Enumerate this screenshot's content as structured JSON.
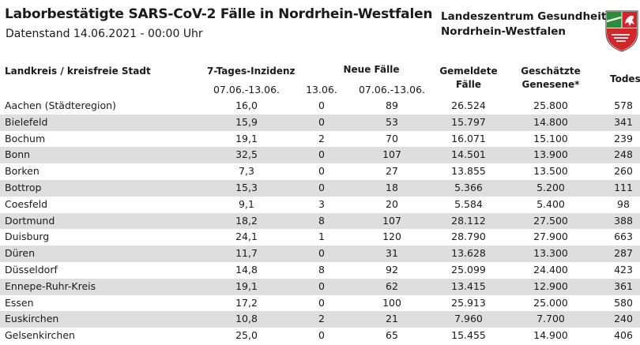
{
  "header": {
    "title": "Laborbestätigte SARS-CoV-2 Fälle in Nordrhein-Westfalen",
    "subtitle": "Datenstand 14.06.2021 - 00:00 Uhr",
    "org_line1": "Landeszentrum Gesundheit",
    "org_line2": "Nordrhein-Westfalen"
  },
  "colors": {
    "row_shade": "#dedede",
    "crest_green": "#2e8b3a",
    "crest_red": "#d3262b"
  },
  "table": {
    "col_name": "Landkreis / kreisfreie Stadt",
    "col_inzidenz": "7-Tages-Inzidenz",
    "col_neue": "Neue Fälle",
    "col_gemeldet_1": "Gemeldete",
    "col_gemeldet_2": "Fälle",
    "col_genesen_1": "Geschätzte",
    "col_genesen_2": "Genesene*",
    "col_tod": "Todesfälle",
    "sub_inzidenz": "07.06.-13.06.",
    "sub_neu_tag": "13.06.",
    "sub_neu_woche": "07.06.-13.06.",
    "rows": [
      {
        "name": "Aachen (Städteregion)",
        "inz": "16,0",
        "neu1": "0",
        "neu7": "89",
        "gem": "26.524",
        "gen": "25.800",
        "tod": "578"
      },
      {
        "name": "Bielefeld",
        "inz": "15,9",
        "neu1": "0",
        "neu7": "53",
        "gem": "15.797",
        "gen": "14.800",
        "tod": "341"
      },
      {
        "name": "Bochum",
        "inz": "19,1",
        "neu1": "2",
        "neu7": "70",
        "gem": "16.071",
        "gen": "15.100",
        "tod": "239"
      },
      {
        "name": "Bonn",
        "inz": "32,5",
        "neu1": "0",
        "neu7": "107",
        "gem": "14.501",
        "gen": "13.900",
        "tod": "248"
      },
      {
        "name": "Borken",
        "inz": "7,3",
        "neu1": "0",
        "neu7": "27",
        "gem": "13.855",
        "gen": "13.500",
        "tod": "260"
      },
      {
        "name": "Bottrop",
        "inz": "15,3",
        "neu1": "0",
        "neu7": "18",
        "gem": "5.366",
        "gen": "5.200",
        "tod": "111"
      },
      {
        "name": "Coesfeld",
        "inz": "9,1",
        "neu1": "3",
        "neu7": "20",
        "gem": "5.584",
        "gen": "5.400",
        "tod": "98"
      },
      {
        "name": "Dortmund",
        "inz": "18,2",
        "neu1": "8",
        "neu7": "107",
        "gem": "28.112",
        "gen": "27.500",
        "tod": "388"
      },
      {
        "name": "Duisburg",
        "inz": "24,1",
        "neu1": "1",
        "neu7": "120",
        "gem": "28.790",
        "gen": "27.900",
        "tod": "663"
      },
      {
        "name": "Düren",
        "inz": "11,7",
        "neu1": "0",
        "neu7": "31",
        "gem": "13.628",
        "gen": "13.300",
        "tod": "287"
      },
      {
        "name": "Düsseldorf",
        "inz": "14,8",
        "neu1": "8",
        "neu7": "92",
        "gem": "25.099",
        "gen": "24.400",
        "tod": "423"
      },
      {
        "name": "Ennepe-Ruhr-Kreis",
        "inz": "19,1",
        "neu1": "0",
        "neu7": "62",
        "gem": "13.415",
        "gen": "12.900",
        "tod": "361"
      },
      {
        "name": "Essen",
        "inz": "17,2",
        "neu1": "0",
        "neu7": "100",
        "gem": "25.913",
        "gen": "25.000",
        "tod": "580"
      },
      {
        "name": "Euskirchen",
        "inz": "10,8",
        "neu1": "2",
        "neu7": "21",
        "gem": "7.960",
        "gen": "7.700",
        "tod": "240"
      },
      {
        "name": "Gelsenkirchen",
        "inz": "25,0",
        "neu1": "0",
        "neu7": "65",
        "gem": "15.455",
        "gen": "14.900",
        "tod": "406"
      }
    ]
  }
}
